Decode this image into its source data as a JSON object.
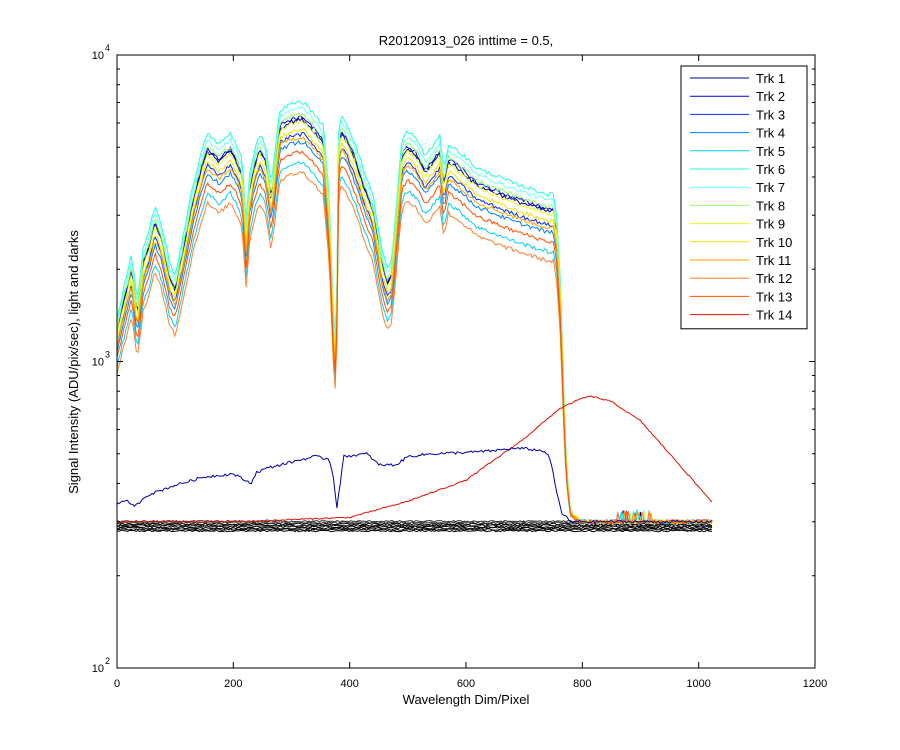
{
  "chart_data": {
    "type": "line",
    "title": "R20120913_026 inttime = 0.5,",
    "xlabel": "Wavelength Dim/Pixel",
    "ylabel": "Signal Intensity (ADU/pix/sec), light and darks",
    "xscale": "linear",
    "yscale": "log",
    "xlim": [
      0,
      1200
    ],
    "ylim": [
      100,
      10000
    ],
    "xticks": [
      0,
      200,
      400,
      600,
      800,
      1000,
      1200
    ],
    "xtick_labels": [
      "0",
      "200",
      "400",
      "600",
      "800",
      "1000",
      "1200"
    ],
    "ytick_labels": [
      {
        "value": 100,
        "base": "10",
        "exp": "2"
      },
      {
        "value": 1000,
        "base": "10",
        "exp": "3"
      },
      {
        "value": 10000,
        "base": "10",
        "exp": "4"
      }
    ],
    "grid": false,
    "legend_position": "top-right",
    "envelope_x": [
      0,
      10,
      25,
      35,
      45,
      55,
      65,
      75,
      90,
      100,
      115,
      130,
      145,
      155,
      165,
      175,
      185,
      195,
      205,
      215,
      222,
      228,
      235,
      245,
      255,
      265,
      280,
      300,
      320,
      340,
      355,
      365,
      372,
      377,
      380,
      385,
      395,
      410,
      425,
      440,
      455,
      465,
      472,
      480,
      490,
      500,
      515,
      530,
      545,
      555,
      562,
      570,
      590,
      620,
      650,
      680,
      700,
      720,
      740,
      750,
      756,
      762,
      766,
      770,
      775,
      780,
      800,
      850,
      900,
      950,
      1000,
      1025
    ],
    "envelope_val": [
      1300,
      1600,
      2100,
      1500,
      2200,
      2500,
      3000,
      2700,
      2000,
      1800,
      2500,
      3500,
      4500,
      5200,
      5000,
      4800,
      5000,
      5200,
      4800,
      4300,
      2700,
      3800,
      4500,
      5200,
      4800,
      3600,
      6200,
      6500,
      6600,
      6000,
      5500,
      3200,
      1400,
      1000,
      5000,
      6000,
      5600,
      4800,
      3900,
      3300,
      2200,
      1900,
      2000,
      3000,
      5000,
      5300,
      5000,
      4400,
      4800,
      5100,
      4000,
      4800,
      4500,
      4000,
      3800,
      3600,
      3500,
      3400,
      3300,
      3300,
      2800,
      1800,
      1100,
      600,
      400,
      320,
      300,
      300,
      300,
      300,
      300,
      300
    ],
    "series": [
      {
        "name": "Trk 1",
        "color": "#00008f",
        "factor": 0.93
      },
      {
        "name": "Trk 2",
        "color": "#0000df",
        "factor": 0.95
      },
      {
        "name": "Trk 3",
        "color": "#0030ff",
        "factor": 0.83
      },
      {
        "name": "Trk 4",
        "color": "#0080ff",
        "factor": 0.78
      },
      {
        "name": "Trk 5",
        "color": "#00cfff",
        "factor": 0.66
      },
      {
        "name": "Trk 6",
        "color": "#20ffdf",
        "factor": 1.07
      },
      {
        "name": "Trk 7",
        "color": "#70ffff",
        "factor": 1.02
      },
      {
        "name": "Trk 8",
        "color": "#8fff70",
        "factor": 0.97
      },
      {
        "name": "Trk 9",
        "color": "#dfff20",
        "factor": 0.91
      },
      {
        "name": "Trk 10",
        "color": "#ffdf00",
        "factor": 0.86
      },
      {
        "name": "Trk 11",
        "color": "#ff9f00",
        "factor": 0.81
      },
      {
        "name": "Trk 12",
        "color": "#ff7f30",
        "factor": 0.61
      },
      {
        "name": "Trk 13",
        "color": "#ff4f00",
        "factor": 0.72
      },
      {
        "name": "Trk 14",
        "color": "#df1000",
        "profile": "bell",
        "x": [
          0,
          200,
          400,
          500,
          600,
          700,
          760,
          800,
          815,
          850,
          900,
          950,
          1000,
          1025
        ],
        "values": [
          300,
          300,
          310,
          350,
          410,
          560,
          700,
          760,
          770,
          740,
          640,
          500,
          390,
          345
        ]
      }
    ],
    "blue_trace": {
      "color": "#0000a8",
      "x": [
        0,
        20,
        30,
        50,
        100,
        150,
        200,
        230,
        240,
        260,
        300,
        340,
        365,
        372,
        378,
        390,
        430,
        450,
        480,
        500,
        540,
        600,
        640,
        680,
        700,
        735,
        745,
        755,
        765,
        780,
        800,
        1025
      ],
      "values": [
        345,
        350,
        335,
        365,
        395,
        420,
        430,
        400,
        435,
        450,
        470,
        490,
        480,
        420,
        335,
        490,
        500,
        460,
        460,
        490,
        500,
        505,
        510,
        520,
        520,
        510,
        480,
        380,
        320,
        300,
        300,
        300
      ]
    },
    "dark_levels": [
      280,
      283,
      286,
      289,
      292,
      295,
      298,
      301
    ]
  }
}
